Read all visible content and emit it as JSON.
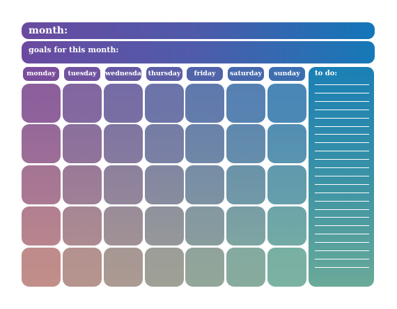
{
  "header": {
    "month_label": "month:",
    "goals_label": "goals for this month:"
  },
  "days": [
    "monday",
    "tuesday",
    "wednesday",
    "thursday",
    "friday",
    "saturday",
    "sunday"
  ],
  "todo": {
    "label": "to do:"
  },
  "grid": {
    "weeks": 5,
    "days_per_week": 7,
    "todo_lines": 23
  },
  "colors": {
    "header_left": "#6a4aa0",
    "header_right": "#1276b8",
    "cell_top_left": "#8c5f9c",
    "cell_top_right": "#4a86b6",
    "cell_bottom_left": "#c28e8a",
    "cell_bottom_right": "#7bb2a2",
    "todo_top": "#1a7fb5",
    "todo_bottom": "#6aaa98"
  }
}
